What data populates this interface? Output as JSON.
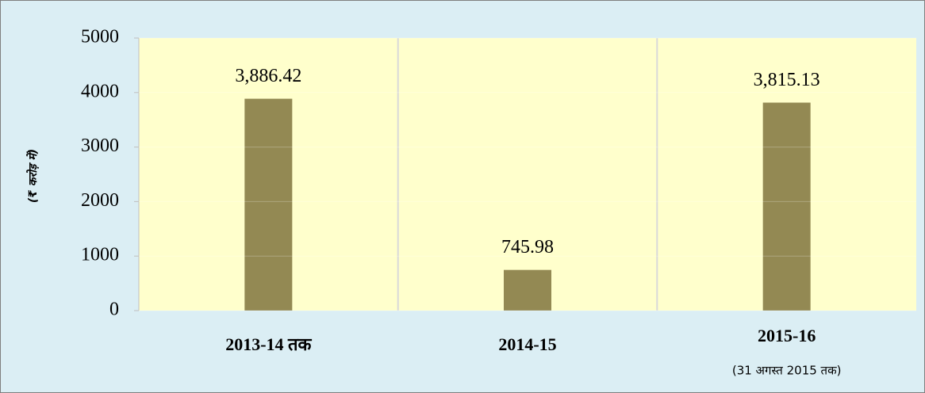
{
  "chart_data": {
    "type": "bar",
    "y_label": "(₹ करोड़ में)",
    "categories": [
      "2013-14 तक",
      "2014-15",
      "2015-16"
    ],
    "category_notes": [
      null,
      null,
      "(31 अगस्त 2015 तक)"
    ],
    "values": [
      3886.42,
      745.98,
      3815.13
    ],
    "value_labels": [
      "3,886.42",
      "745.98",
      "3,815.13"
    ],
    "color": "#938953",
    "ylim": [
      0,
      5000
    ],
    "yticks": [
      0,
      1000,
      2000,
      3000,
      4000,
      5000
    ],
    "grid": true
  }
}
